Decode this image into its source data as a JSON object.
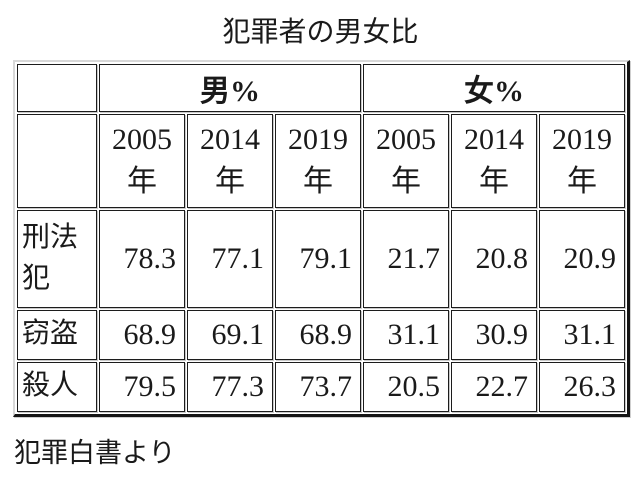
{
  "title": "犯罪者の男女比",
  "source": "犯罪白書より",
  "table": {
    "group_headers": [
      {
        "label": "男%"
      },
      {
        "label": "女%"
      }
    ],
    "year_headers": [
      {
        "line1": "2005",
        "line2": "年"
      },
      {
        "line1": "2014",
        "line2": "年"
      },
      {
        "line1": "2019",
        "line2": "年"
      },
      {
        "line1": "2005",
        "line2": "年"
      },
      {
        "line1": "2014",
        "line2": "年"
      },
      {
        "line1": "2019",
        "line2": "年"
      }
    ],
    "rows": [
      {
        "label": "刑法犯",
        "values": [
          "78.3",
          "77.1",
          "79.1",
          "21.7",
          "20.8",
          "20.9"
        ]
      },
      {
        "label": "窃盗",
        "values": [
          "68.9",
          "69.1",
          "68.9",
          "31.1",
          "30.9",
          "31.1"
        ]
      },
      {
        "label": "殺人",
        "values": [
          "79.5",
          "77.3",
          "73.7",
          "20.5",
          "22.7",
          "26.3"
        ]
      }
    ]
  },
  "chart_data": {
    "type": "table",
    "title": "犯罪者の男女比",
    "column_groups": [
      "男%",
      "女%"
    ],
    "columns": [
      "男% 2005年",
      "男% 2014年",
      "男% 2019年",
      "女% 2005年",
      "女% 2014年",
      "女% 2019年"
    ],
    "rows": [
      {
        "label": "刑法犯",
        "values": [
          78.3,
          77.1,
          79.1,
          21.7,
          20.8,
          20.9
        ]
      },
      {
        "label": "窃盗",
        "values": [
          68.9,
          69.1,
          68.9,
          31.1,
          30.9,
          31.1
        ]
      },
      {
        "label": "殺人",
        "values": [
          79.5,
          77.3,
          73.7,
          20.5,
          22.7,
          26.3
        ]
      }
    ],
    "source": "犯罪白書より"
  }
}
